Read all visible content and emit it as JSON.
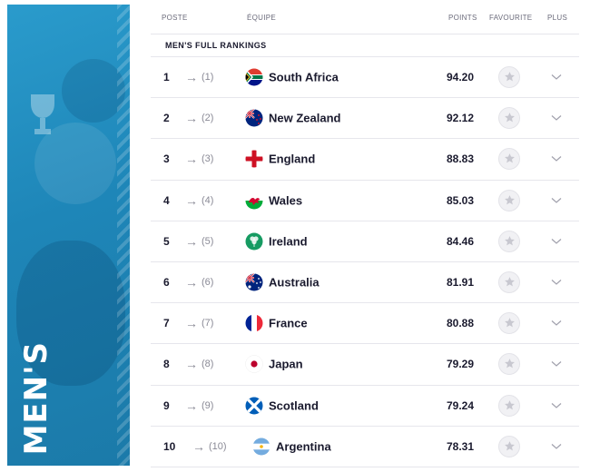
{
  "promo": {
    "title": "MEN'S"
  },
  "header": {
    "rank": "POSTE",
    "team": "ÉQUIPE",
    "points": "POINTS",
    "favourite": "FAVOURITE",
    "more": "PLUS"
  },
  "section_title": "MEN'S FULL RANKINGS",
  "rows": [
    {
      "rank": "1",
      "prev": "(1)",
      "team": "South Africa",
      "points": "94.20",
      "flag": "south-africa"
    },
    {
      "rank": "2",
      "prev": "(2)",
      "team": "New Zealand",
      "points": "92.12",
      "flag": "new-zealand"
    },
    {
      "rank": "3",
      "prev": "(3)",
      "team": "England",
      "points": "88.83",
      "flag": "england"
    },
    {
      "rank": "4",
      "prev": "(4)",
      "team": "Wales",
      "points": "85.03",
      "flag": "wales"
    },
    {
      "rank": "5",
      "prev": "(5)",
      "team": "Ireland",
      "points": "84.46",
      "flag": "ireland"
    },
    {
      "rank": "6",
      "prev": "(6)",
      "team": "Australia",
      "points": "81.91",
      "flag": "australia"
    },
    {
      "rank": "7",
      "prev": "(7)",
      "team": "France",
      "points": "80.88",
      "flag": "france"
    },
    {
      "rank": "8",
      "prev": "(8)",
      "team": "Japan",
      "points": "79.29",
      "flag": "japan"
    },
    {
      "rank": "9",
      "prev": "(9)",
      "team": "Scotland",
      "points": "79.24",
      "flag": "scotland"
    },
    {
      "rank": "10",
      "prev": "(10)",
      "team": "Argentina",
      "points": "78.31",
      "flag": "argentina"
    }
  ],
  "icons": {
    "movement": "arrow-right-icon",
    "favourite": "star-icon",
    "more": "chevron-down-icon"
  },
  "colors": {
    "promo_blue": "#2a9bcc",
    "star_grey": "#c8c8d0"
  }
}
